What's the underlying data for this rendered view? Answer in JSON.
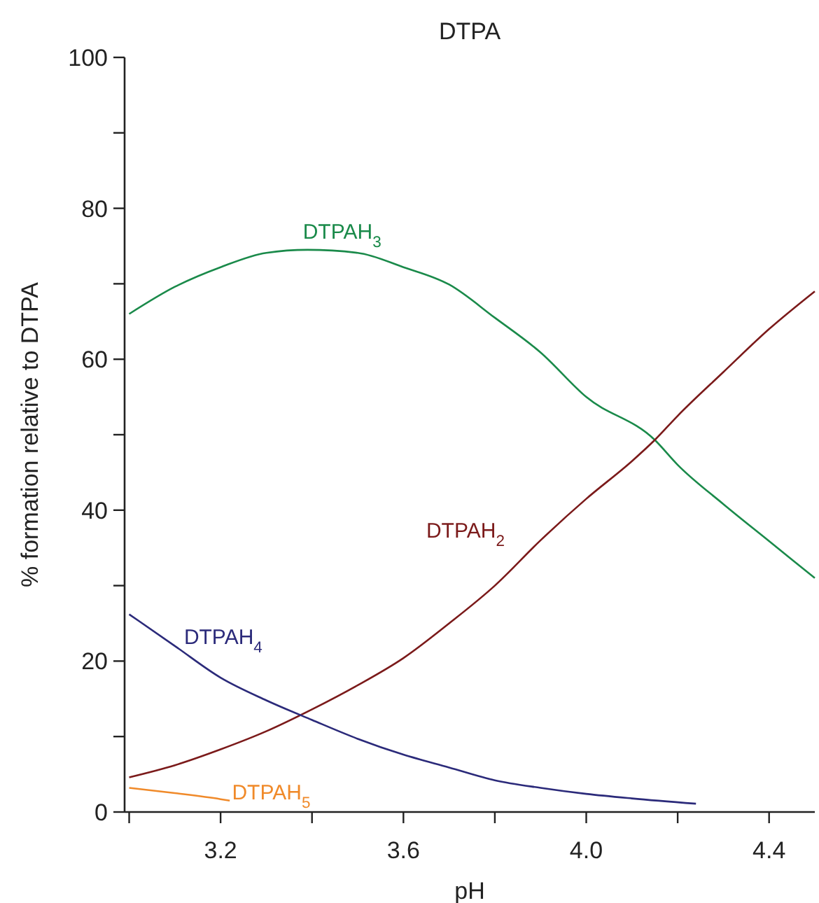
{
  "chart_data": {
    "type": "line",
    "title": "DTPA",
    "xlabel": "pH",
    "ylabel": "% formation relative to DTPA",
    "xlim": [
      2.99,
      4.5
    ],
    "xticks": [
      {
        "value": 3.0,
        "label": null
      },
      3.2,
      {
        "value": 3.4,
        "label": null
      },
      3.6,
      {
        "value": 3.8,
        "label": null
      },
      {
        "value": 4.0,
        "label": "4.0"
      },
      {
        "value": 4.2,
        "label": null
      },
      4.4
    ],
    "ylim": [
      0,
      100
    ],
    "yticks": [
      0,
      {
        "value": 10,
        "label": null
      },
      20,
      {
        "value": 30,
        "label": null
      },
      40,
      {
        "value": 50,
        "label": null
      },
      60,
      {
        "value": 70,
        "label": null
      },
      80,
      {
        "value": 90,
        "label": null
      },
      100
    ],
    "grid": false,
    "marker": "none",
    "line_style": "solid",
    "series": [
      {
        "name": "DTPAH$_{3}$",
        "color": "#1a8a4a",
        "x": [
          3.0,
          3.1,
          3.2,
          3.3,
          3.39,
          3.5,
          3.6,
          3.7,
          3.8,
          3.9,
          4.0,
          4.15,
          4.2,
          4.3,
          4.4,
          4.5
        ],
        "values": [
          66.0,
          69.6,
          72.2,
          74.1,
          74.5,
          74.1,
          72.2,
          69.9,
          65.5,
          60.9,
          55.0,
          49.3,
          46.0,
          40.8,
          35.9,
          31.0
        ]
      },
      {
        "name": "DTPAH$_{2}$",
        "color": "#7b1a1a",
        "x": [
          3.0,
          3.1,
          3.2,
          3.3,
          3.4,
          3.5,
          3.6,
          3.7,
          3.8,
          3.9,
          4.0,
          4.1,
          4.15,
          4.2,
          4.3,
          4.4,
          4.5
        ],
        "values": [
          4.6,
          6.2,
          8.3,
          10.7,
          13.6,
          16.8,
          20.4,
          25.0,
          30.0,
          36.0,
          41.5,
          46.5,
          49.3,
          52.5,
          58.3,
          64.0,
          69.0
        ]
      },
      {
        "name": "DTPAH$_{4}$",
        "color": "#2b2a7a",
        "x": [
          3.0,
          3.1,
          3.2,
          3.3,
          3.4,
          3.5,
          3.6,
          3.7,
          3.8,
          3.9,
          4.0,
          4.1,
          4.24
        ],
        "values": [
          26.2,
          22.0,
          17.8,
          14.8,
          12.2,
          9.7,
          7.6,
          5.9,
          4.2,
          3.2,
          2.4,
          1.8,
          1.1
        ]
      },
      {
        "name": "DTPAH$_{5}$",
        "color": "#f08a2a",
        "x": [
          3.0,
          3.1,
          3.2,
          3.22
        ],
        "values": [
          3.2,
          2.5,
          1.7,
          1.5
        ]
      }
    ]
  }
}
